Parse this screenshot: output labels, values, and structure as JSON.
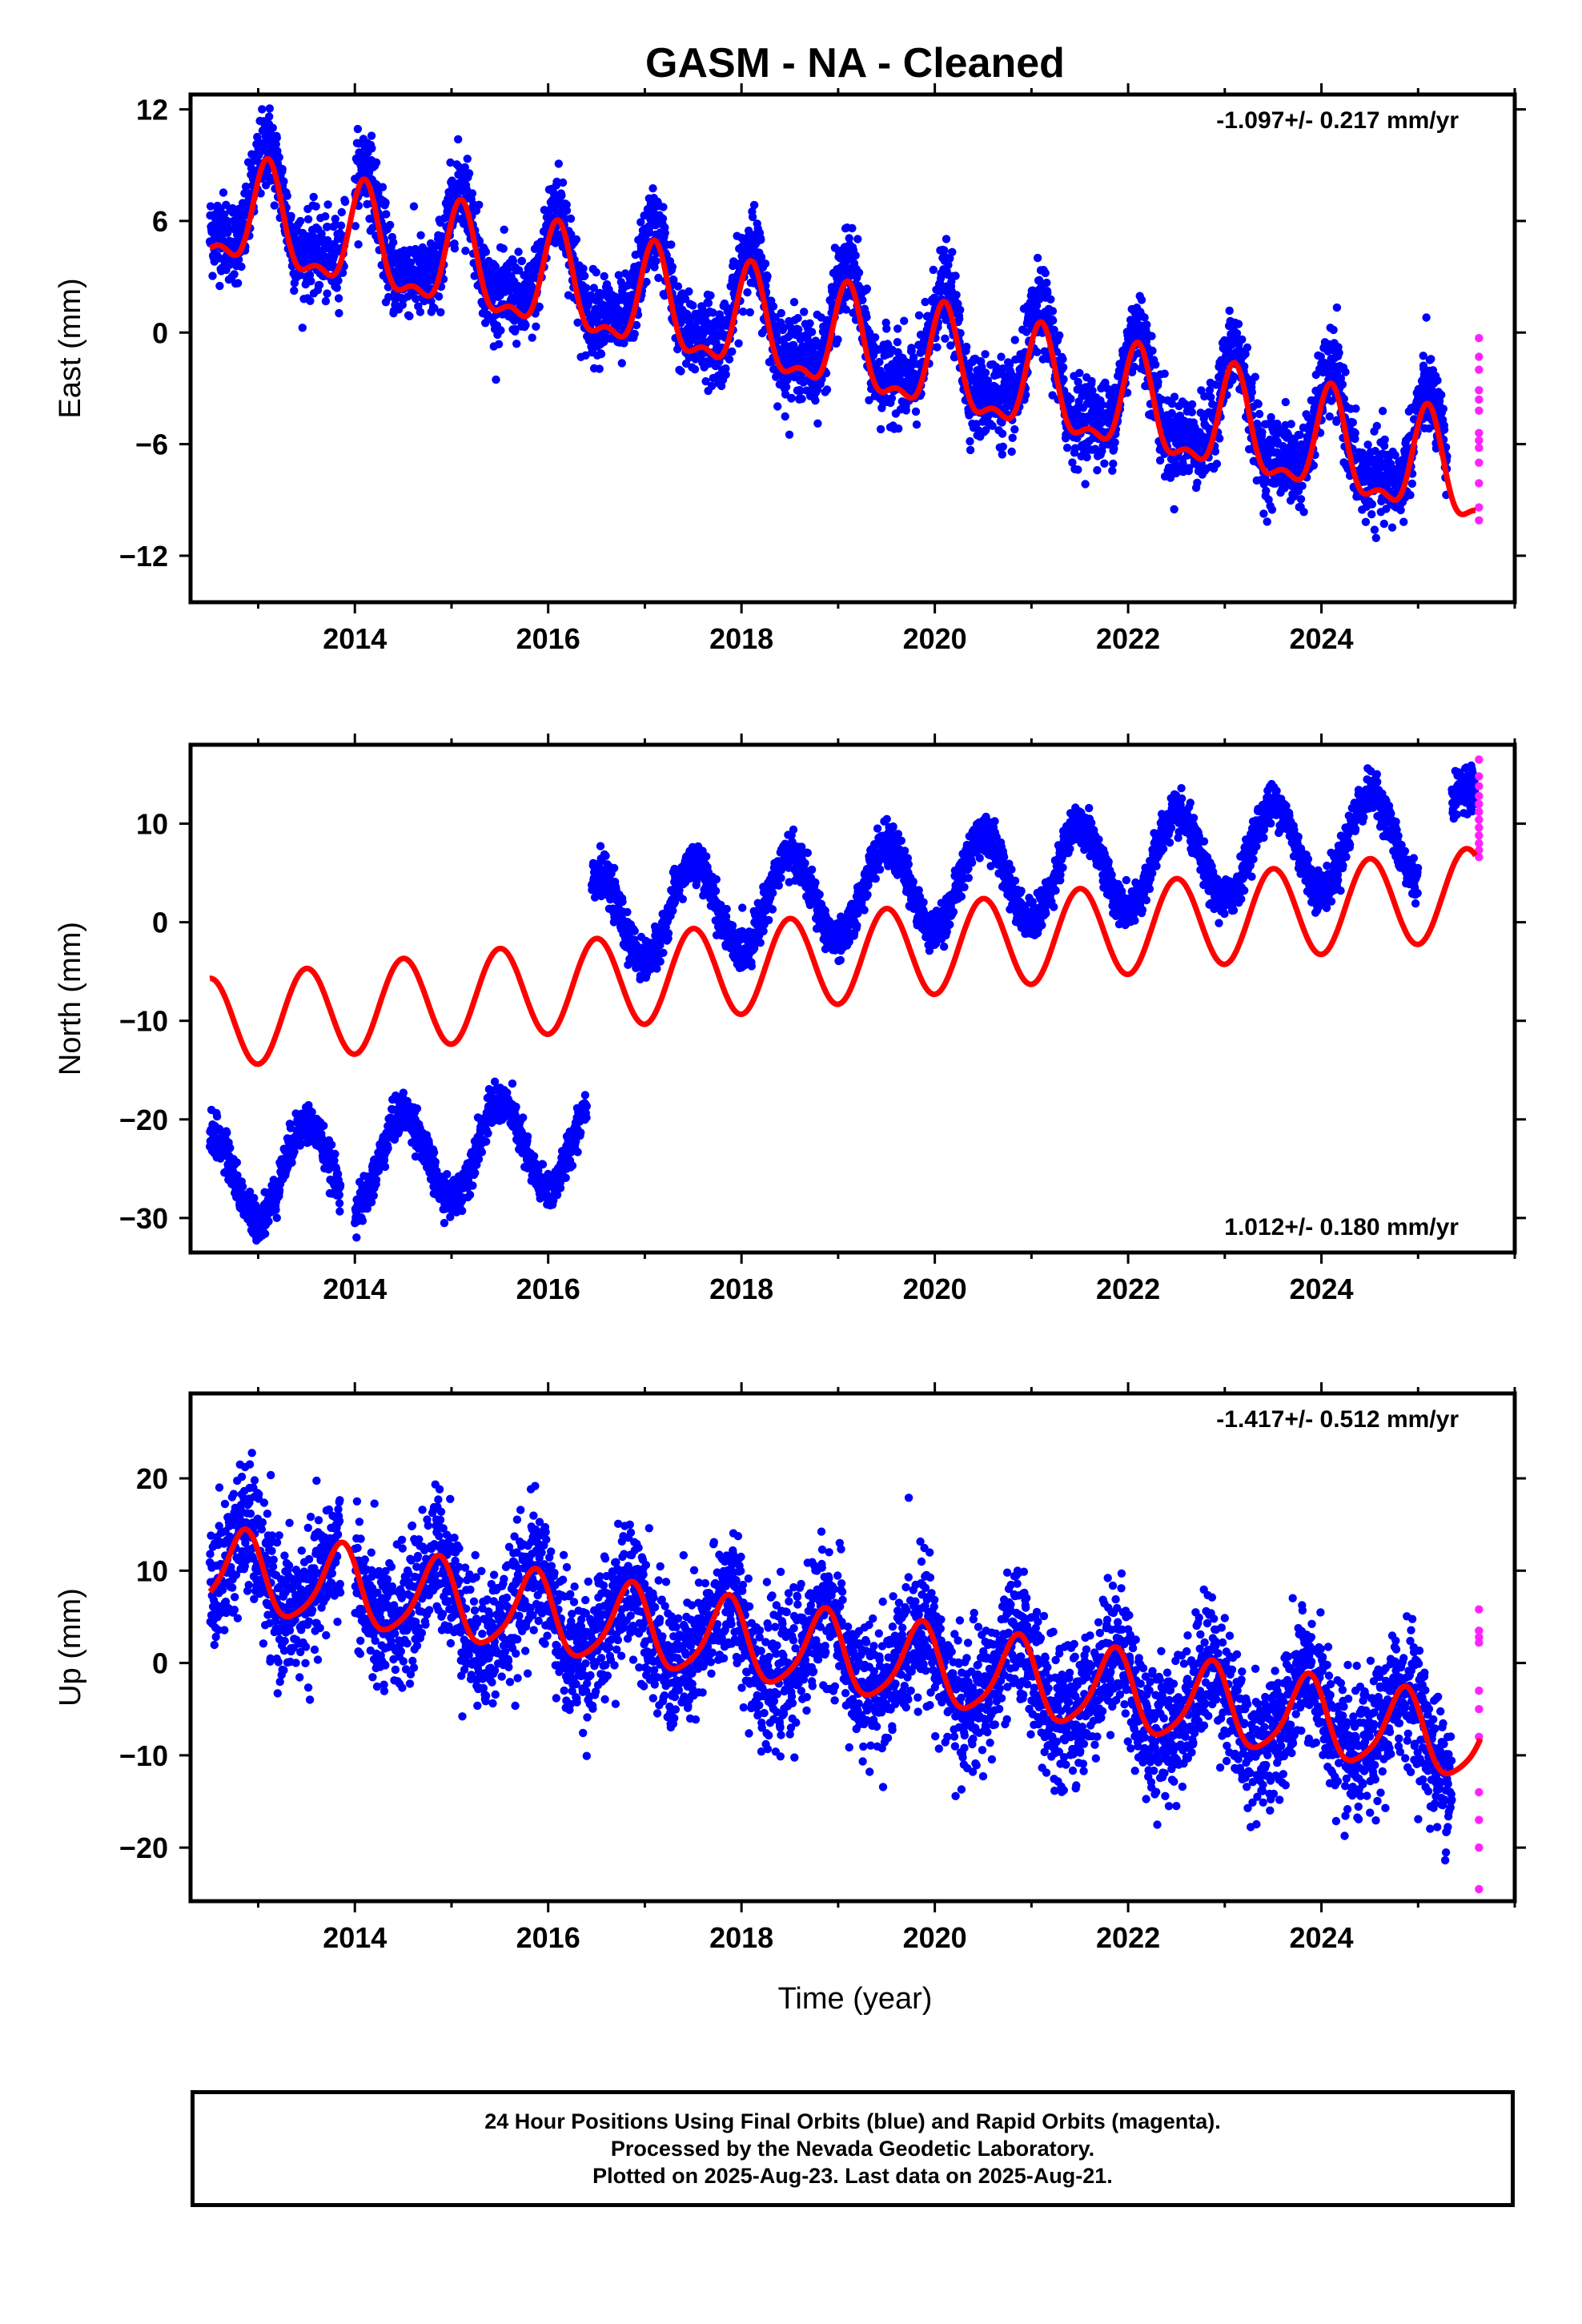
{
  "title": "GASM  - NA - Cleaned",
  "xlabel": "Time (year)",
  "colors": {
    "final": "#0000ff",
    "rapid": "#ff22ff",
    "model": "#ff0000",
    "axes": "#000000"
  },
  "footer": {
    "line1": "24 Hour Positions Using Final Orbits (blue) and Rapid Orbits (magenta).",
    "line2": "Processed by the Nevada Geodetic Laboratory.",
    "line3": "Plotted on 2025-Aug-23. Last data on 2025-Aug-21."
  },
  "chart_data": [
    {
      "type": "scatter",
      "component": "East",
      "ylabel": "East (mm)",
      "xlim": [
        2012.3,
        2026.0
      ],
      "ylim": [
        -14.5,
        12.8
      ],
      "xticks": [
        2014,
        2016,
        2018,
        2020,
        2022,
        2024
      ],
      "yticks": [
        -12,
        -6,
        0,
        6,
        12
      ],
      "yticklabels": [
        "−12",
        "−6",
        "0",
        "6",
        "12"
      ],
      "rate_label": "-1.097+/- 0.217 mm/yr",
      "rate_label_position": "top-right",
      "data_start": 2012.5,
      "data_end": 2025.3,
      "final_gaps": [
        [
          2013.9,
          2014.0
        ]
      ],
      "model": {
        "intercept": 6.3,
        "slope": -1.097,
        "t0": 2012.5,
        "annual_amp": 2.6,
        "annual_peak_phase": 0.1,
        "semiannual_amp": 1.1,
        "semiannual_peak_phase": 0.1,
        "fill_start": null,
        "fill_end": null
      },
      "series": [
        {
          "name": "Final Orbits",
          "scatter_sigma": 1.1,
          "offset_mm": 0.7,
          "early_offset": null
        },
        {
          "name": "Rapid Orbits",
          "x": 2025.63,
          "y": [
            -0.3,
            -1.3,
            -2.0,
            -3.1,
            -3.6,
            -4.2,
            -5.4,
            -5.8,
            -6.2,
            -7.0,
            -8.1,
            -9.4,
            -10.1
          ]
        }
      ]
    },
    {
      "type": "scatter",
      "component": "North",
      "ylabel": "North (mm)",
      "xlim": [
        2012.3,
        2026.0
      ],
      "ylim": [
        -33.5,
        18.0
      ],
      "xticks": [
        2014,
        2016,
        2018,
        2020,
        2022,
        2024
      ],
      "yticks": [
        -30,
        -20,
        -10,
        0,
        10
      ],
      "yticklabels": [
        "−30",
        "−20",
        "−10",
        "0",
        "10"
      ],
      "rate_label": "1.012+/- 0.180 mm/yr",
      "rate_label_position": "bottom-right",
      "data_start": 2012.5,
      "data_end": 2025.3,
      "final_gaps": [
        [
          2013.85,
          2014.0
        ],
        [
          2016.4,
          2016.45
        ],
        [
          2025.0,
          2025.35
        ]
      ],
      "model": {
        "intercept": -10.3,
        "slope": 1.012,
        "t0": 2012.5,
        "annual_amp": 4.6,
        "annual_peak_phase": 0.5,
        "semiannual_amp": 0.0,
        "semiannual_peak_phase": 0.0,
        "fill_start": 2025.35,
        "fill_end": 2025.6
      },
      "series": [
        {
          "name": "Final Orbits",
          "scatter_sigma": 1.0,
          "offset_mm": 6.5,
          "early_offset": {
            "until": 2016.4,
            "value": -15.7
          },
          "late_segment": {
            "start": 2025.35,
            "end": 2025.6
          }
        },
        {
          "name": "Rapid Orbits",
          "x": 2025.63,
          "y": [
            16.5,
            14.8,
            13.8,
            12.8,
            12.0,
            11.2,
            10.4,
            9.6,
            8.8,
            8.0,
            7.3,
            6.6
          ]
        }
      ]
    },
    {
      "type": "scatter",
      "component": "Up",
      "ylabel": "Up (mm)",
      "xlim": [
        2012.3,
        2026.0
      ],
      "ylim": [
        -25.8,
        29.2
      ],
      "xticks": [
        2014,
        2016,
        2018,
        2020,
        2022,
        2024
      ],
      "yticks": [
        -20,
        -10,
        0,
        10,
        20
      ],
      "yticklabels": [
        "−20",
        "−10",
        "0",
        "10",
        "20"
      ],
      "rate_label": "-1.417+/- 0.512 mm/yr",
      "rate_label_position": "top-right",
      "data_start": 2012.5,
      "data_end": 2025.35,
      "final_gaps": [
        [
          2013.85,
          2014.0
        ]
      ],
      "model": {
        "intercept": 10.0,
        "slope": -1.417,
        "t0": 2012.5,
        "annual_amp": 4.3,
        "annual_peak_phase": 0.85,
        "semiannual_amp": 0.8,
        "semiannual_peak_phase": 0.4,
        "fill_start": null,
        "fill_end": null
      },
      "series": [
        {
          "name": "Final Orbits",
          "scatter_sigma": 3.6,
          "offset_mm": 0.0,
          "early_offset": null
        },
        {
          "name": "Rapid Orbits",
          "x": 2025.63,
          "y": [
            5.8,
            3.5,
            2.8,
            2.2,
            -3.0,
            -5.0,
            -8.0,
            -14.0,
            -17.0,
            -20.0,
            -24.5
          ]
        }
      ]
    }
  ]
}
